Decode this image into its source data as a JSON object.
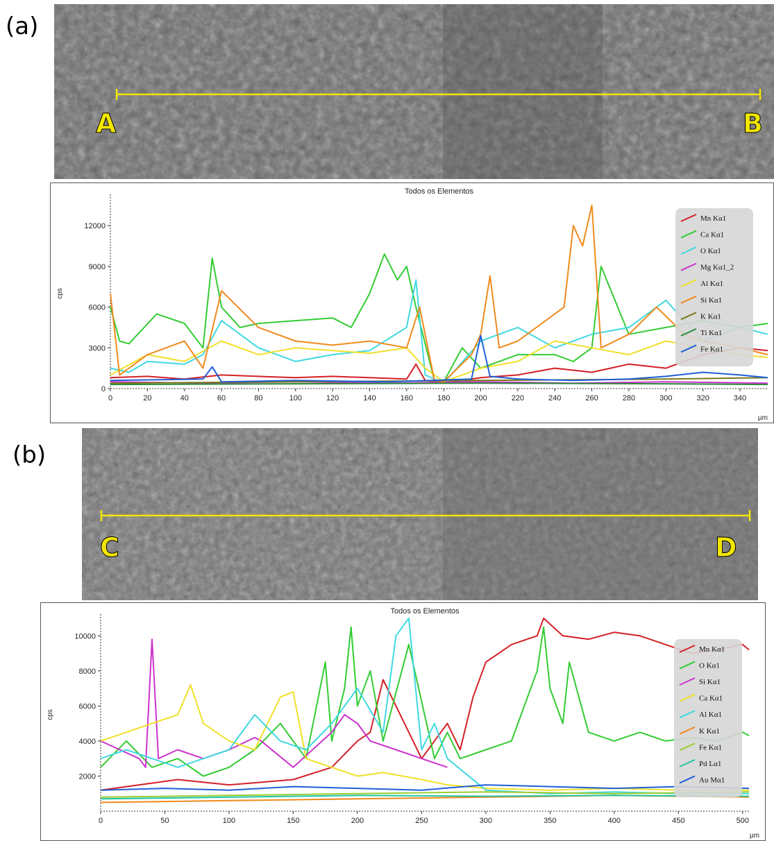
{
  "panels": [
    {
      "label": "(a)",
      "start_marker": "A",
      "end_marker": "B"
    },
    {
      "label": "(b)",
      "start_marker": "C",
      "end_marker": "D"
    }
  ],
  "colors": {
    "marker": "#f2e600",
    "legend_bg": "#d6d6d6"
  },
  "chart_data": [
    {
      "type": "line",
      "title": "Todos os Elementos",
      "xlabel": "µm",
      "ylabel": "cps",
      "xlim": [
        0,
        355
      ],
      "ylim": [
        0,
        14000
      ],
      "x_ticks": [
        0,
        20,
        40,
        60,
        80,
        100,
        120,
        140,
        160,
        180,
        200,
        220,
        240,
        260,
        280,
        300,
        320,
        340
      ],
      "y_ticks": [
        0,
        3000,
        6000,
        9000,
        12000
      ],
      "legend": "top-right",
      "series": [
        {
          "name": "Mn Kα1",
          "color": "#d41f26",
          "x": [
            0,
            20,
            40,
            60,
            80,
            100,
            120,
            140,
            160,
            165,
            170,
            180,
            200,
            220,
            240,
            260,
            280,
            300,
            320,
            340,
            355
          ],
          "values": [
            800,
            900,
            700,
            1000,
            900,
            800,
            900,
            800,
            700,
            1800,
            600,
            400,
            800,
            1000,
            1500,
            1200,
            1800,
            1500,
            2500,
            3000,
            2800
          ]
        },
        {
          "name": "Ca Kα1",
          "color": "#33cc33",
          "x": [
            0,
            5,
            10,
            25,
            40,
            50,
            55,
            60,
            70,
            80,
            100,
            120,
            130,
            140,
            148,
            155,
            160,
            165,
            175,
            180,
            190,
            200,
            210,
            220,
            240,
            250,
            260,
            265,
            280,
            300,
            320,
            340,
            355
          ],
          "values": [
            6000,
            3500,
            3300,
            5500,
            4800,
            3000,
            9600,
            6000,
            4500,
            4800,
            5000,
            5200,
            4500,
            7000,
            9900,
            8000,
            9000,
            6000,
            600,
            500,
            3000,
            1500,
            2000,
            2500,
            2500,
            2000,
            3000,
            9000,
            4000,
            4500,
            5000,
            4500,
            4800
          ]
        },
        {
          "name": "O Kα1",
          "color": "#40d8e0",
          "x": [
            0,
            10,
            20,
            40,
            50,
            60,
            80,
            100,
            120,
            140,
            160,
            165,
            170,
            180,
            200,
            220,
            240,
            260,
            280,
            300,
            320,
            340,
            355
          ],
          "values": [
            1500,
            1200,
            2000,
            1800,
            2500,
            5000,
            3000,
            2000,
            2500,
            2800,
            4500,
            8000,
            1000,
            400,
            3500,
            4500,
            3000,
            4000,
            4500,
            6500,
            3500,
            4500,
            4000
          ]
        },
        {
          "name": "Mg Kα1_2",
          "color": "#cc33cc",
          "x": [
            0,
            50,
            100,
            150,
            200,
            250,
            300,
            355
          ],
          "values": [
            500,
            400,
            500,
            400,
            500,
            400,
            500,
            400
          ]
        },
        {
          "name": "Al Kα1",
          "color": "#f0e02a",
          "x": [
            0,
            20,
            40,
            60,
            80,
            100,
            120,
            140,
            160,
            170,
            180,
            200,
            220,
            240,
            260,
            280,
            300,
            320,
            340,
            355
          ],
          "values": [
            1000,
            2500,
            2000,
            3500,
            2500,
            3000,
            2800,
            2600,
            3000,
            1500,
            500,
            1500,
            2000,
            3500,
            3000,
            2500,
            3500,
            3000,
            2500,
            2300
          ]
        },
        {
          "name": "Si Kα1",
          "color": "#f08a1c",
          "x": [
            0,
            5,
            20,
            40,
            50,
            60,
            80,
            100,
            120,
            140,
            160,
            167,
            175,
            180,
            195,
            200,
            205,
            210,
            220,
            240,
            245,
            250,
            255,
            260,
            265,
            280,
            295,
            310,
            320,
            340,
            355
          ],
          "values": [
            7000,
            1000,
            2500,
            3500,
            1500,
            7200,
            4500,
            3500,
            3200,
            3500,
            3000,
            6000,
            600,
            500,
            2500,
            4000,
            8300,
            3000,
            3500,
            5500,
            6000,
            12000,
            10500,
            13500,
            3000,
            4000,
            6000,
            4000,
            3500,
            3000,
            2500
          ]
        },
        {
          "name": "K Kα1",
          "color": "#7a7a1a",
          "x": [
            0,
            100,
            200,
            300,
            355
          ],
          "values": [
            400,
            500,
            600,
            700,
            800
          ]
        },
        {
          "name": "Ti Kα1",
          "color": "#2a8a3a",
          "x": [
            0,
            100,
            200,
            300,
            355
          ],
          "values": [
            300,
            350,
            400,
            350,
            300
          ]
        },
        {
          "name": "Fe Kα1",
          "color": "#1f5fd8",
          "x": [
            0,
            50,
            55,
            60,
            100,
            150,
            195,
            200,
            205,
            220,
            250,
            280,
            300,
            320,
            340,
            355
          ],
          "values": [
            600,
            700,
            1600,
            500,
            600,
            500,
            700,
            3900,
            900,
            700,
            600,
            700,
            900,
            1200,
            1000,
            800
          ]
        }
      ]
    },
    {
      "type": "line",
      "title": "Todos os Elementos",
      "xlabel": "µm",
      "ylabel": "cps",
      "xlim": [
        0,
        505
      ],
      "ylim": [
        0,
        11000
      ],
      "x_ticks": [
        0,
        50,
        100,
        150,
        200,
        250,
        300,
        350,
        400,
        450,
        500
      ],
      "y_ticks": [
        2000,
        4000,
        6000,
        8000,
        10000
      ],
      "legend": "top-right",
      "series": [
        {
          "name": "Mn Kα1",
          "color": "#d41f26",
          "x": [
            0,
            30,
            60,
            100,
            150,
            180,
            200,
            210,
            220,
            250,
            270,
            280,
            290,
            300,
            320,
            340,
            345,
            360,
            380,
            400,
            420,
            440,
            460,
            480,
            500,
            505
          ],
          "values": [
            1200,
            1500,
            1800,
            1500,
            1800,
            2500,
            4000,
            4500,
            7500,
            3000,
            5000,
            3500,
            6500,
            8500,
            9500,
            10000,
            11000,
            10000,
            9800,
            10200,
            10000,
            9500,
            9000,
            9200,
            9500,
            9200
          ]
        },
        {
          "name": "O Kα1",
          "color": "#33cc33",
          "x": [
            0,
            20,
            40,
            60,
            80,
            100,
            120,
            140,
            160,
            175,
            180,
            190,
            195,
            200,
            210,
            220,
            240,
            260,
            270,
            280,
            300,
            320,
            340,
            345,
            350,
            360,
            365,
            380,
            400,
            420,
            440,
            460,
            480,
            500,
            505
          ],
          "values": [
            2500,
            4000,
            2500,
            3000,
            2000,
            2500,
            3500,
            5000,
            3000,
            8500,
            4000,
            7000,
            10500,
            6000,
            8000,
            4000,
            9500,
            3000,
            4500,
            3000,
            3500,
            4000,
            8000,
            10500,
            7000,
            5000,
            8500,
            4500,
            4000,
            4500,
            4000,
            4200,
            4000,
            4500,
            4300
          ]
        },
        {
          "name": "Si Kα1",
          "color": "#cc33cc",
          "x": [
            0,
            30,
            35,
            40,
            45,
            60,
            80,
            100,
            120,
            125,
            150,
            180,
            190,
            200,
            210,
            230,
            250,
            270
          ],
          "values": [
            4000,
            3000,
            2500,
            9800,
            3000,
            3500,
            3000,
            3500,
            4200,
            4000,
            2500,
            4500,
            5500,
            5000,
            4000,
            3500,
            3000,
            2500
          ]
        },
        {
          "name": "Ca Kα1",
          "color": "#f0e02a",
          "x": [
            0,
            20,
            40,
            60,
            70,
            80,
            100,
            120,
            140,
            150,
            160,
            180,
            200,
            220,
            250,
            270,
            300,
            350,
            400,
            450,
            505
          ],
          "values": [
            4000,
            4500,
            5000,
            5500,
            7200,
            5000,
            4000,
            3500,
            6500,
            6800,
            3000,
            2500,
            2000,
            2200,
            1800,
            1500,
            1300,
            1200,
            1300,
            1200,
            1200
          ]
        },
        {
          "name": "Al Kα1",
          "color": "#40d8e0",
          "x": [
            0,
            20,
            40,
            60,
            80,
            100,
            120,
            140,
            160,
            180,
            200,
            220,
            230,
            240,
            250,
            260,
            270,
            300,
            350,
            400,
            450,
            505
          ],
          "values": [
            3000,
            3500,
            3000,
            2500,
            3000,
            3500,
            5500,
            4000,
            3500,
            5000,
            7000,
            4500,
            10000,
            11000,
            3500,
            5000,
            3000,
            1200,
            1000,
            1100,
            1000,
            1000
          ]
        },
        {
          "name": "K Kα1",
          "color": "#f08a1c",
          "x": [
            0,
            100,
            200,
            300,
            400,
            505
          ],
          "values": [
            500,
            600,
            700,
            800,
            900,
            800
          ]
        },
        {
          "name": "Fe Kα1",
          "color": "#9acd32",
          "x": [
            0,
            100,
            200,
            300,
            400,
            505
          ],
          "values": [
            800,
            900,
            1000,
            1100,
            1000,
            1100
          ]
        },
        {
          "name": "Pd Lα1",
          "color": "#22c4a0",
          "x": [
            0,
            100,
            200,
            300,
            400,
            505
          ],
          "values": [
            700,
            800,
            900,
            850,
            900,
            850
          ]
        },
        {
          "name": "Au Mα1",
          "color": "#1f5fd8",
          "x": [
            0,
            50,
            100,
            150,
            200,
            250,
            300,
            350,
            400,
            450,
            505
          ],
          "values": [
            1200,
            1300,
            1200,
            1400,
            1300,
            1200,
            1500,
            1400,
            1300,
            1400,
            1300
          ]
        }
      ]
    }
  ]
}
